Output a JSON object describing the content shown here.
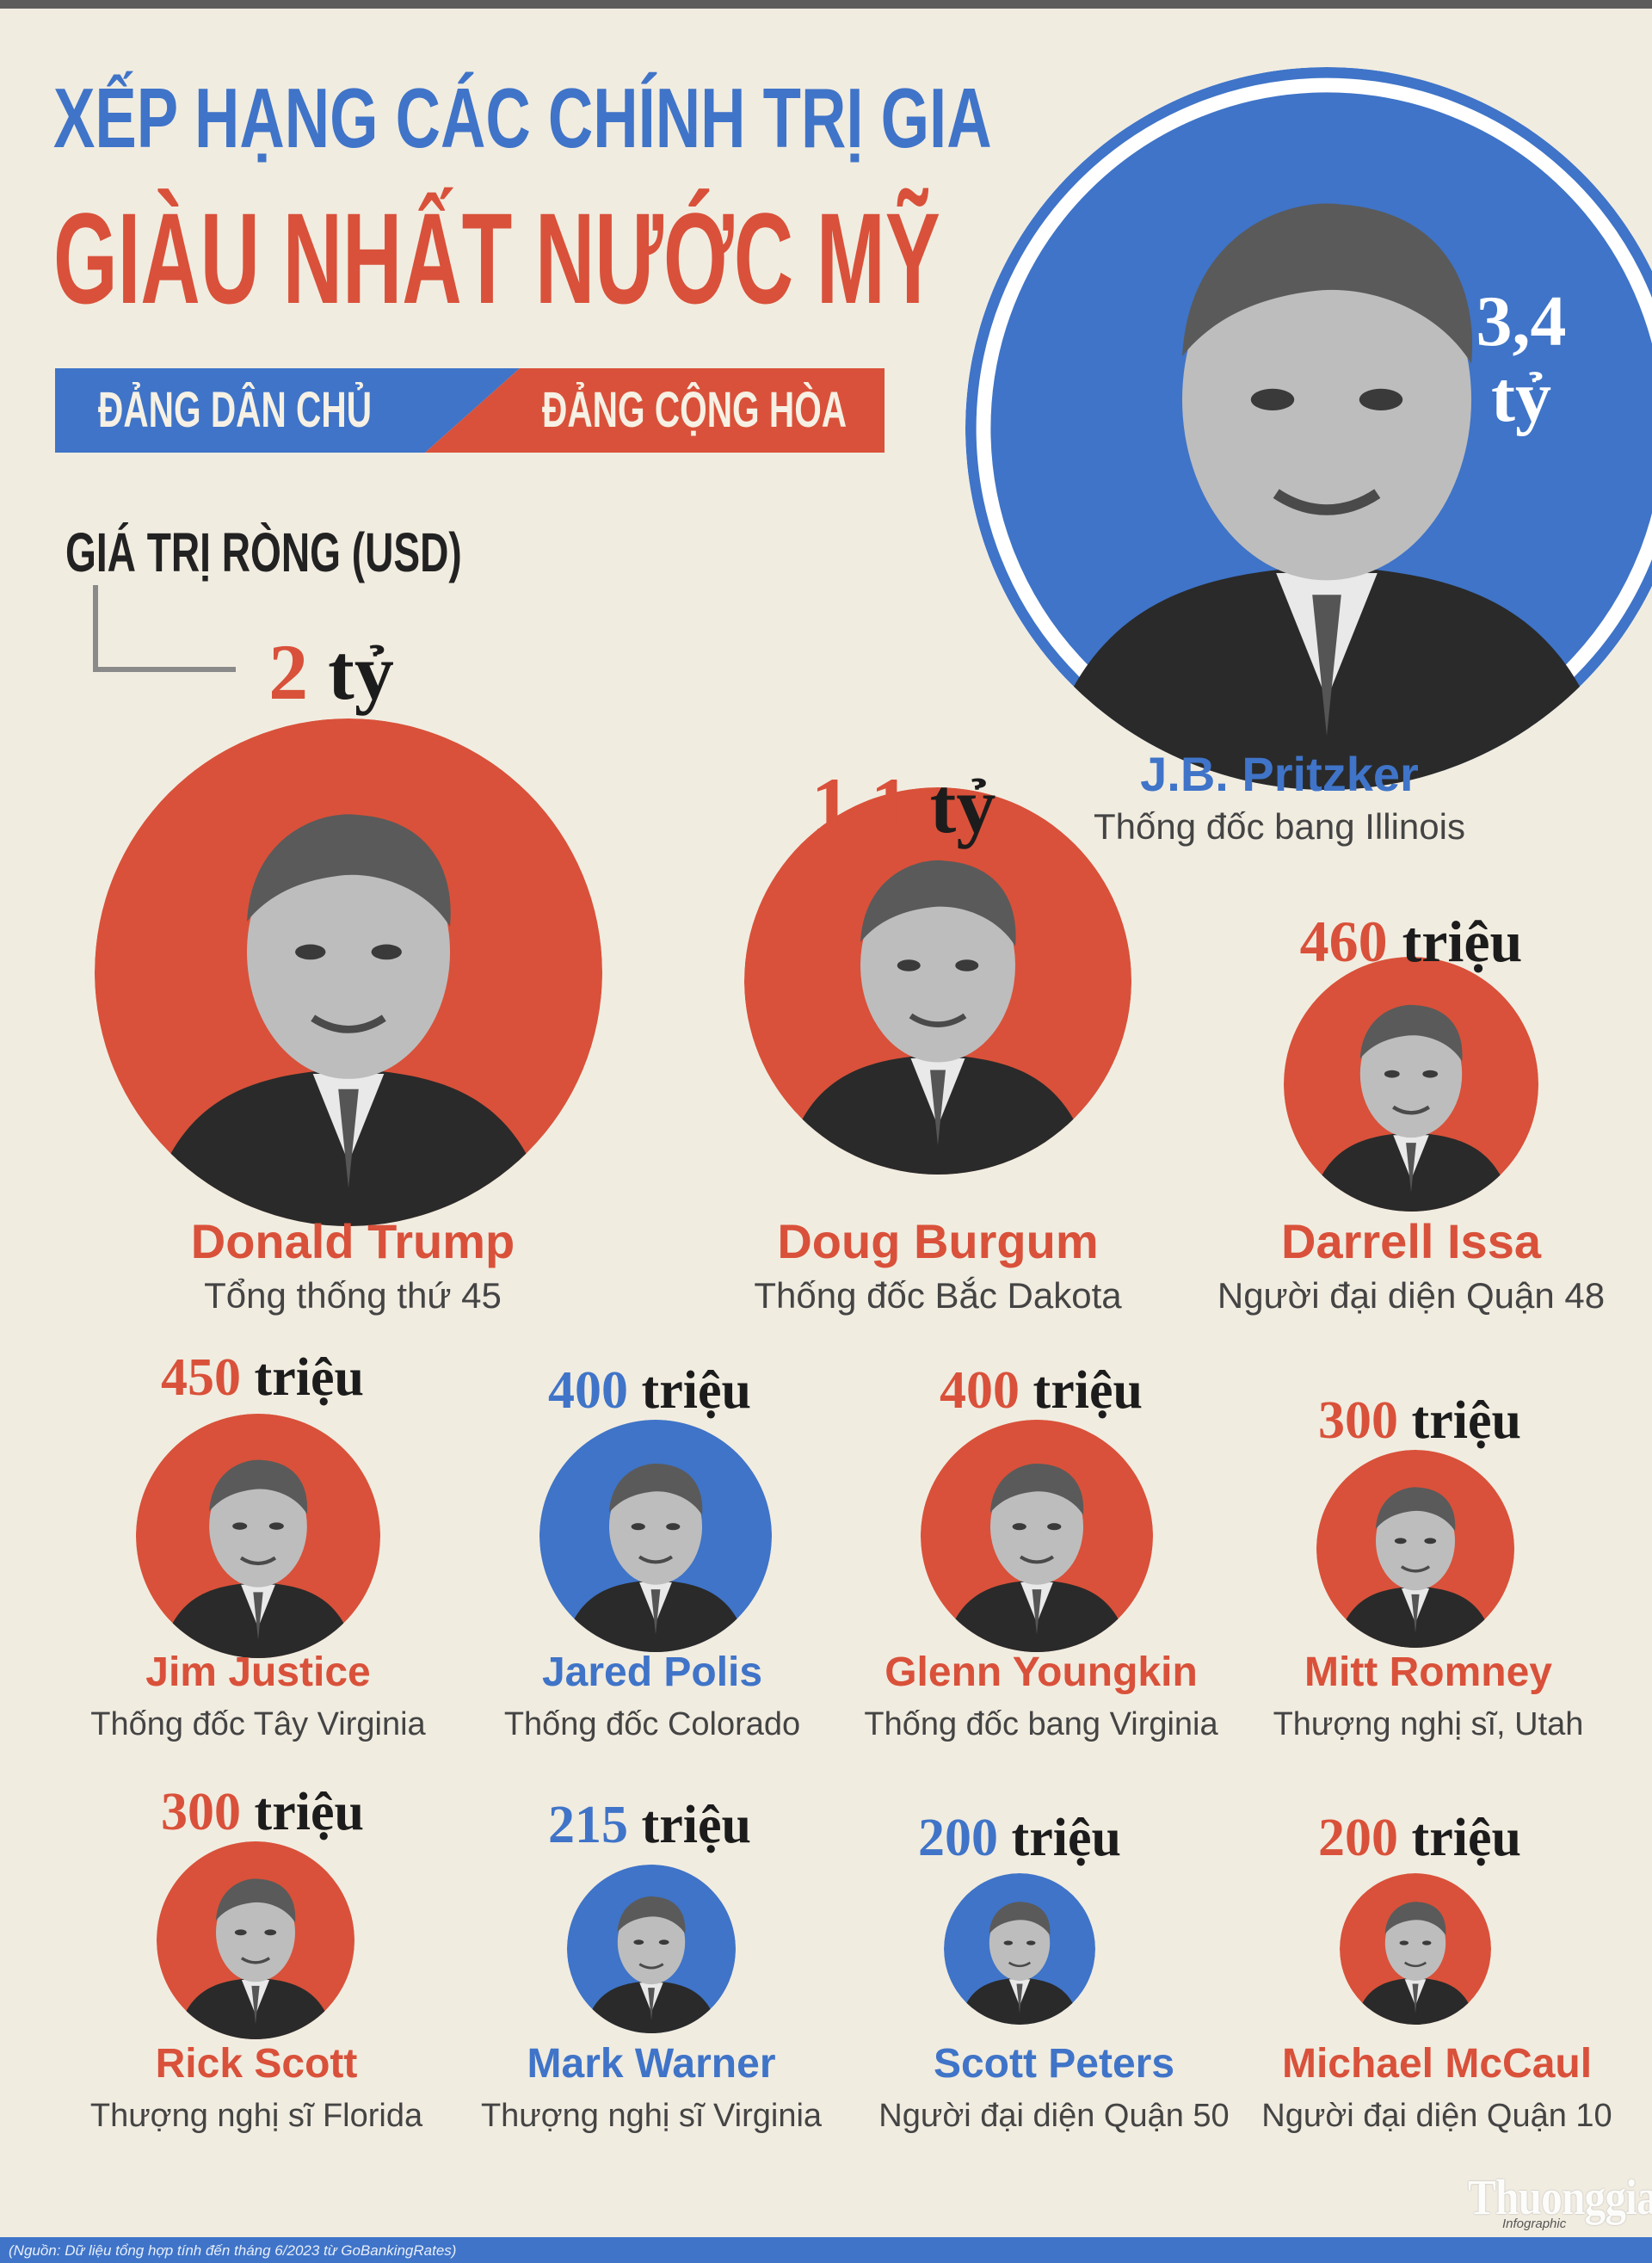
{
  "header": {
    "title_line1": "XẾP HẠNG CÁC CHÍNH TRỊ GIA",
    "title_line2": "GIÀU NHẤT NƯỚC MỸ",
    "legend_democrat": "ĐẢNG DÂN CHỦ",
    "legend_republican": "ĐẢNG CỘNG HÒA",
    "metric_label": "GIÁ TRỊ RÒNG (USD)"
  },
  "colors": {
    "democrat": "#3f74c8",
    "republican": "#d9513a",
    "background": "#f1ece0"
  },
  "politicians": [
    {
      "name": "J.B. Pritzker",
      "role": "Thống đốc bang Illinois",
      "value": "3,4",
      "unit": "tỷ",
      "party": "democrat"
    },
    {
      "name": "Donald Trump",
      "role": "Tổng thống thứ 45",
      "value": "2",
      "unit": "tỷ",
      "party": "republican"
    },
    {
      "name": "Doug Burgum",
      "role": "Thống đốc Bắc Dakota",
      "value": "1,1",
      "unit": "tỷ",
      "party": "republican"
    },
    {
      "name": "Darrell Issa",
      "role": "Người đại diện Quận 48",
      "value": "460",
      "unit": "triệu",
      "party": "republican"
    },
    {
      "name": "Jim Justice",
      "role": "Thống đốc Tây Virginia",
      "value": "450",
      "unit": "triệu",
      "party": "republican"
    },
    {
      "name": "Jared Polis",
      "role": "Thống đốc Colorado",
      "value": "400",
      "unit": "triệu",
      "party": "democrat"
    },
    {
      "name": "Glenn Youngkin",
      "role": "Thống đốc bang Virginia",
      "value": "400",
      "unit": "triệu",
      "party": "republican"
    },
    {
      "name": "Mitt Romney",
      "role": "Thượng nghị sĩ, Utah",
      "value": "300",
      "unit": "triệu",
      "party": "republican"
    },
    {
      "name": "Rick Scott",
      "role": "Thượng nghị sĩ Florida",
      "value": "300",
      "unit": "triệu",
      "party": "republican"
    },
    {
      "name": "Mark Warner",
      "role": "Thượng nghị sĩ Virginia",
      "value": "215",
      "unit": "triệu",
      "party": "democrat"
    },
    {
      "name": "Scott Peters",
      "role": "Người đại diện Quận 50",
      "value": "200",
      "unit": "triệu",
      "party": "democrat"
    },
    {
      "name": "Michael McCaul",
      "role": "Người đại diện Quận 10",
      "value": "200",
      "unit": "triệu",
      "party": "republican"
    }
  ],
  "footer": {
    "source": "(Nguồn: Dữ liệu tổng hợp tính đến tháng 6/2023 từ GoBankingRates)",
    "logo": "Thuonggia",
    "logo_sub": "Infographic"
  }
}
